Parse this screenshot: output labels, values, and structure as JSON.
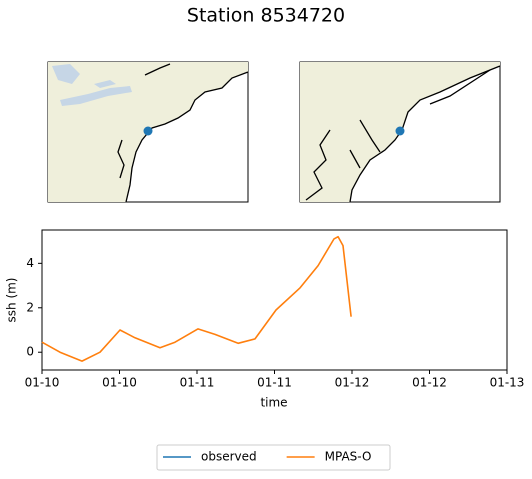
{
  "chart_data": {
    "type": "line",
    "title": "Station 8534720",
    "x_label": "time",
    "y_label": "ssh (m)",
    "x": [
      10.0,
      10.116,
      10.258,
      10.374,
      10.503,
      10.6,
      10.761,
      10.858,
      11.006,
      11.116,
      11.265,
      11.374,
      11.51,
      11.665,
      11.781,
      11.884,
      11.91,
      11.942,
      11.994
    ],
    "series": [
      {
        "name": "observed",
        "color": "#1f77b4",
        "values": [
          null,
          null,
          null,
          null,
          null,
          null,
          null,
          null,
          null,
          null,
          null,
          null,
          null,
          null,
          null,
          null,
          null,
          null,
          null
        ]
      },
      {
        "name": "MPAS-O",
        "color": "#ff7f0e",
        "values": [
          0.45,
          0.0,
          -0.4,
          0.0,
          1.0,
          0.65,
          0.2,
          0.45,
          1.05,
          0.8,
          0.4,
          0.6,
          1.9,
          2.9,
          3.9,
          5.1,
          5.2,
          4.8,
          1.6
        ]
      }
    ],
    "xlim": [
      10,
      13
    ],
    "xticks": [
      {
        "value": 10,
        "label": "01-10"
      },
      {
        "value": 10.5,
        "label": "01-10"
      },
      {
        "value": 11,
        "label": "01-11"
      },
      {
        "value": 11.5,
        "label": "01-11"
      },
      {
        "value": 12,
        "label": "01-12"
      },
      {
        "value": 12.5,
        "label": "01-12"
      },
      {
        "value": 13,
        "label": "01-13"
      }
    ],
    "ylim": [
      -0.8,
      5.5
    ],
    "yticks": [
      0,
      2,
      4
    ],
    "grid": false,
    "legend": "lower center"
  }
}
